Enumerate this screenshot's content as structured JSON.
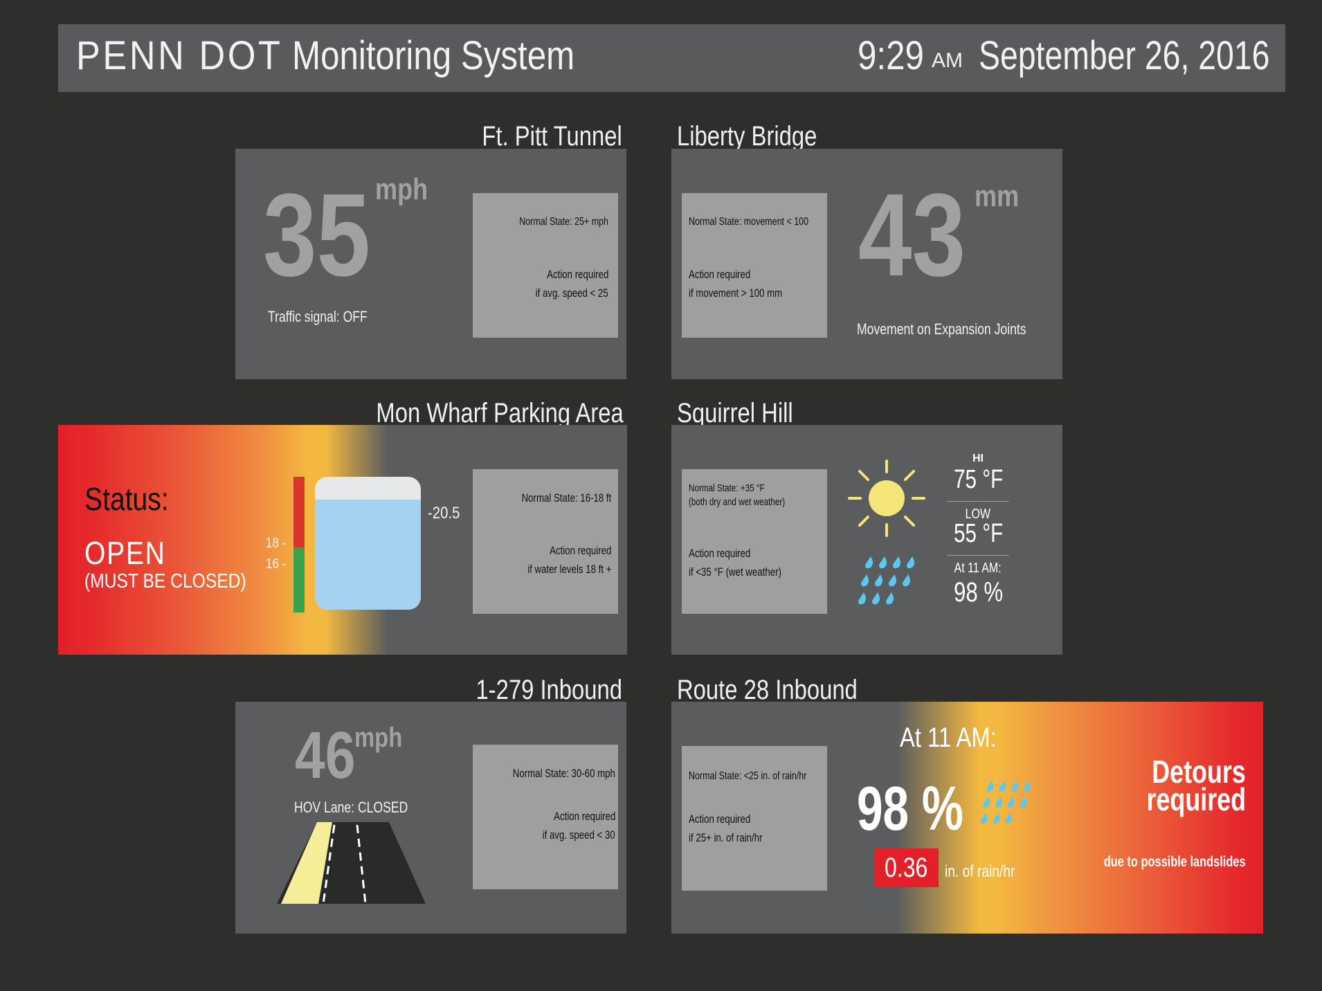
{
  "header": {
    "brand": "PENN DOT",
    "system": "Monitoring System",
    "time": "9:29",
    "ampm": "AM",
    "date": "September 26, 2016"
  },
  "ftpitt": {
    "title": "Ft. Pitt Tunnel",
    "value": "35",
    "unit": "mph",
    "status": "Traffic signal: OFF",
    "normal": "Normal State: 25+ mph",
    "action1": "Action required",
    "action2": "if avg. speed < 25"
  },
  "liberty": {
    "title": "Liberty Bridge",
    "value": "43",
    "unit": "mm",
    "caption": "Movement on Expansion Joints",
    "normal": "Normal State: movement < 100",
    "action1": "Action required",
    "action2": "if movement > 100 mm"
  },
  "monwharf": {
    "title": "Mon Wharf Parking Area",
    "status_label": "Status:",
    "status": "OPEN",
    "status_note": "(MUST BE CLOSED)",
    "tick18": "18 -",
    "tick16": "16 -",
    "level_label": "-20.5",
    "normal": "Normal State: 16-18 ft",
    "action1": "Action required",
    "action2": "if water levels 18 ft +"
  },
  "squirrel": {
    "title": "Squirrel Hill",
    "normal1": "Normal State: +35 °F",
    "normal2": "(both dry and wet weather)",
    "action1": "Action required",
    "action2": "if <35 °F (wet weather)",
    "hi_label": "HI",
    "hi": "75 °F",
    "low_label": "LOW",
    "low": "55 °F",
    "at_label": "At 11 AM:",
    "precip": "98 %"
  },
  "i279": {
    "title": "1-279 Inbound",
    "value": "46",
    "unit": "mph",
    "status": "HOV Lane: CLOSED",
    "normal": "Normal State: 30-60 mph",
    "action1": "Action required",
    "action2": "if avg. speed < 30"
  },
  "route28": {
    "title": "Route 28 Inbound",
    "normal": "Normal State: <25 in. of rain/hr",
    "action1": "Action required",
    "action2": "if 25+ in. of rain/hr",
    "at_label": "At 11 AM:",
    "precip": "98 %",
    "rain": "0.36",
    "rain_unit": "in. of rain/hr",
    "detour1": "Detours",
    "detour2": "required",
    "detour_note": "due to possible landslides"
  },
  "colors": {
    "background": "#2e2e2d",
    "panel": "#5a5c5d",
    "infobox": "#a09f9f",
    "alert_red": "#e41f2a",
    "alert_yellow": "#f3b840",
    "sun": "#f5e67a",
    "rain": "#5bc8f0",
    "water": "#a3d3f0",
    "gauge_red": "#d9362b",
    "gauge_green": "#3aa24a"
  },
  "water_fill": 0.83
}
